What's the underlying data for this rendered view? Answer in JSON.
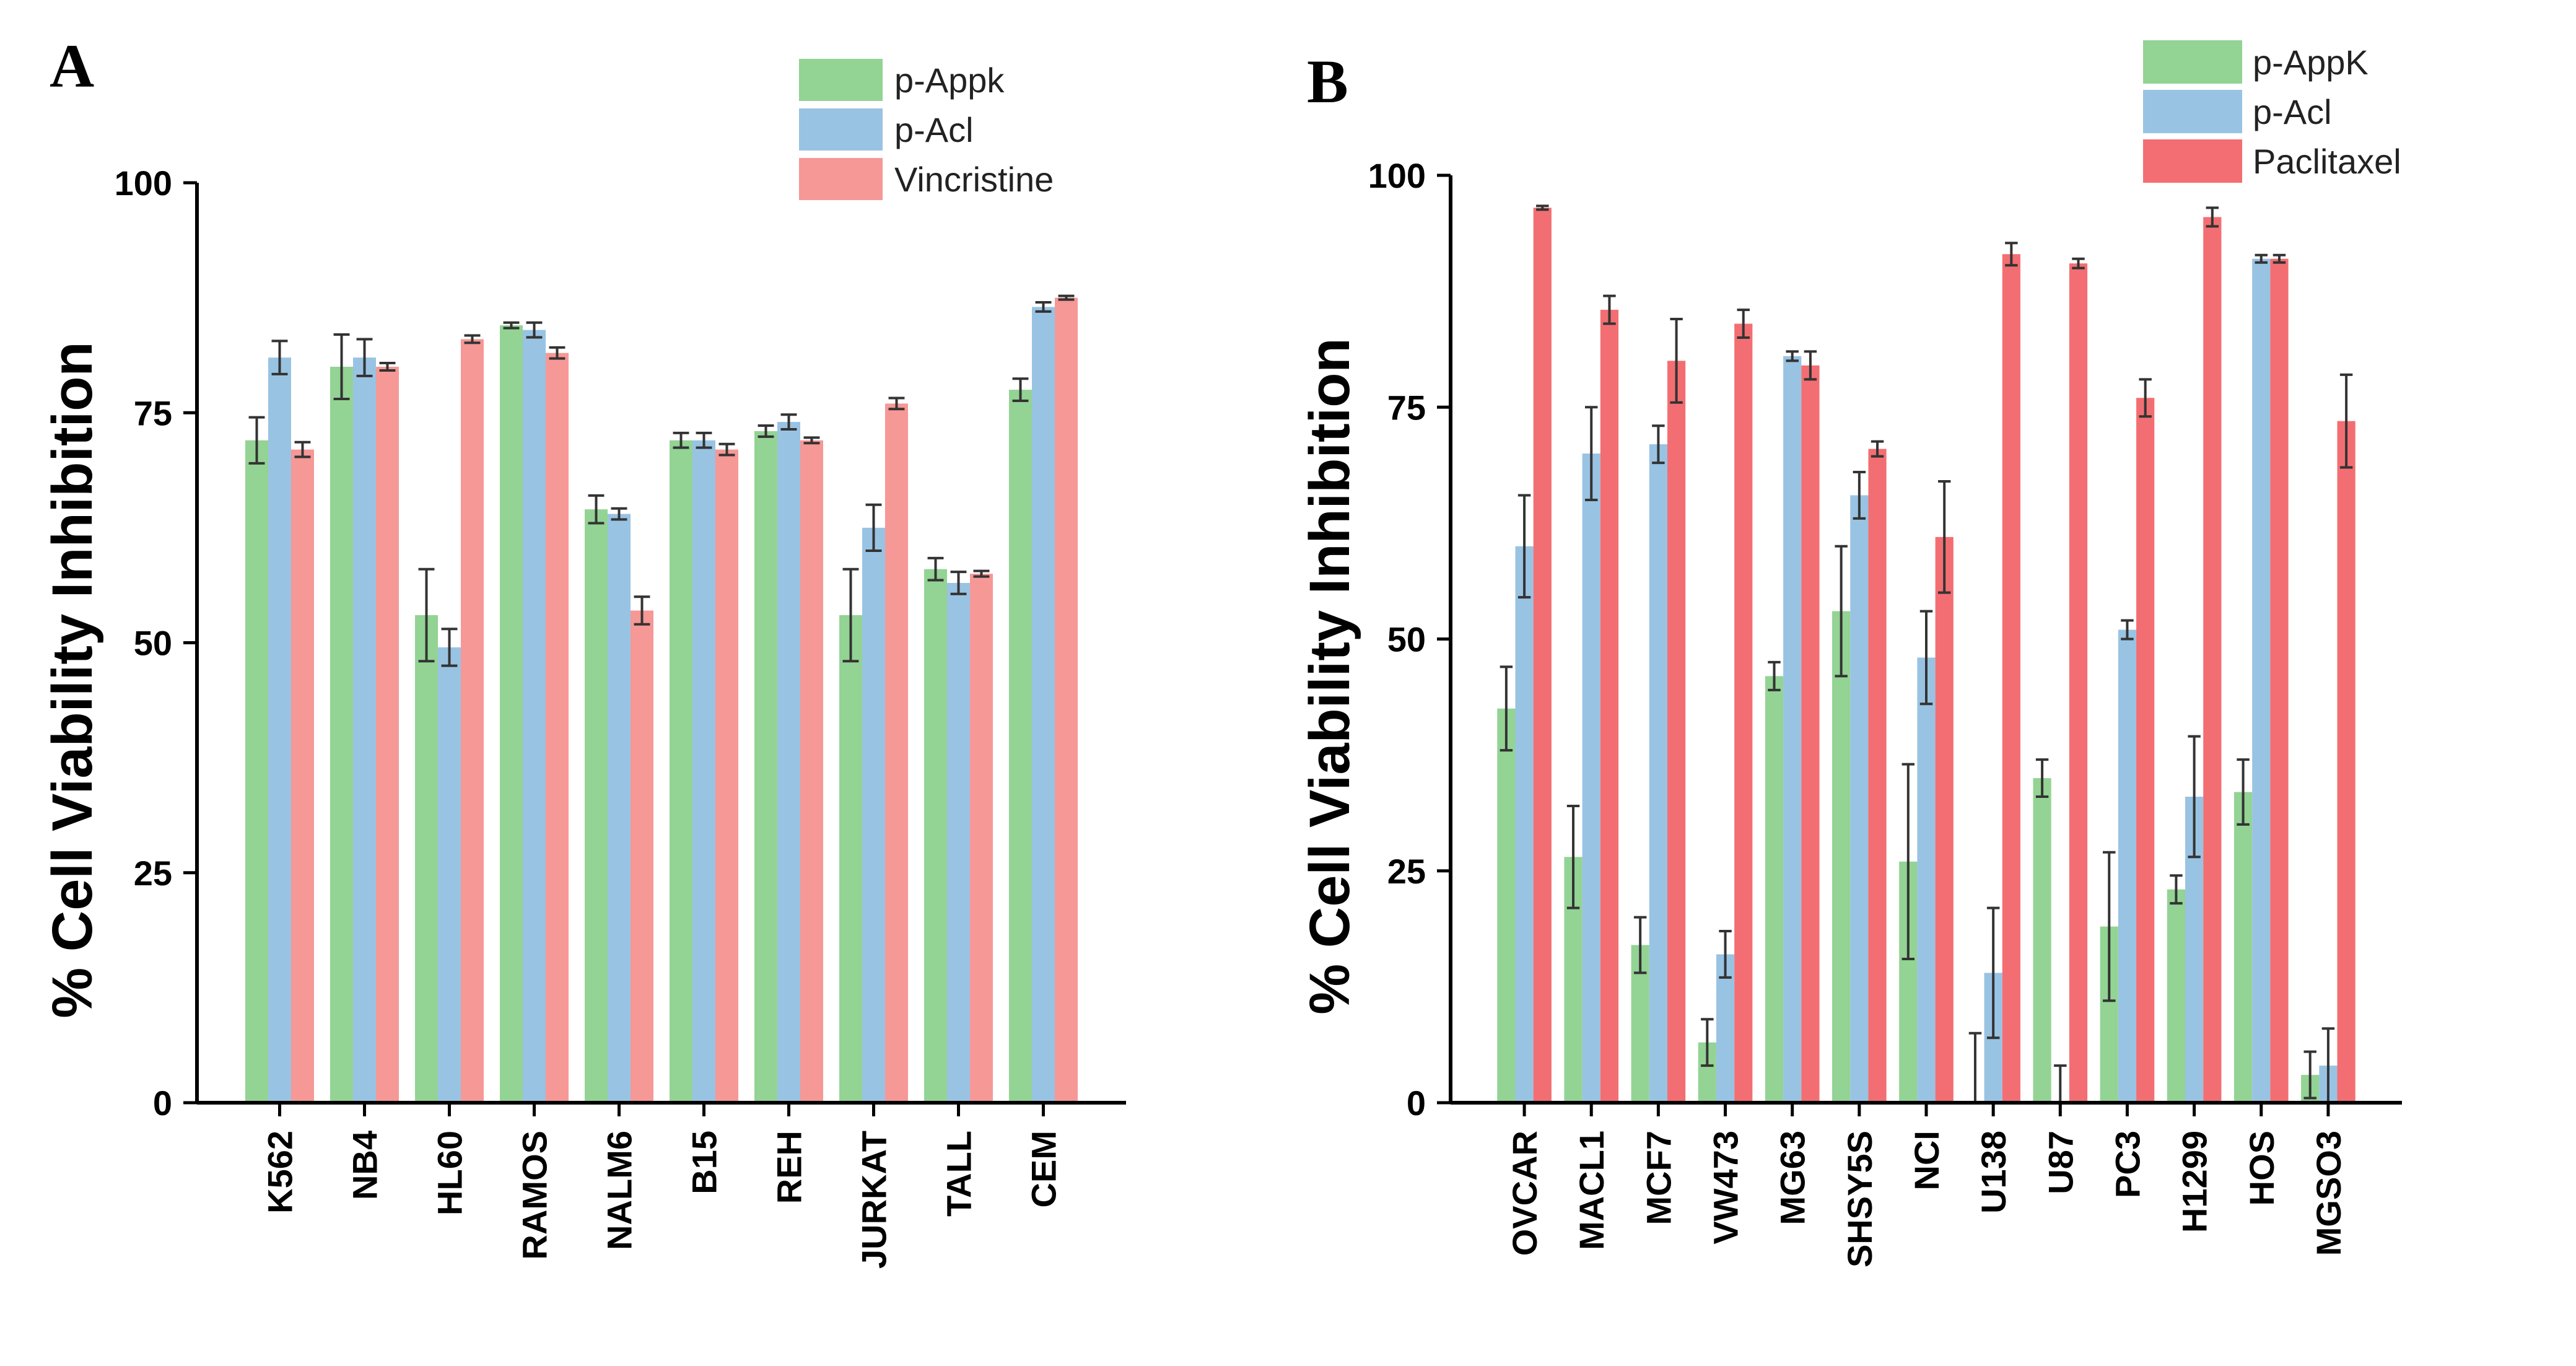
{
  "chart_data": [
    {
      "panel": "A",
      "type": "bar",
      "ylabel": "% Cell Viability Inhibition",
      "xlabel": "",
      "ylim": [
        0,
        100
      ],
      "yticks": [
        "0",
        "25",
        "50",
        "75",
        "100"
      ],
      "legend_position": "top-right",
      "categories": [
        "K562",
        "NB4",
        "HL60",
        "RAMOS",
        "NALM6",
        "B15",
        "REH",
        "JURKAT",
        "TALL",
        "CEM"
      ],
      "series": [
        {
          "name": "p-Appk",
          "color": "#93d394",
          "values": [
            72,
            80,
            53,
            84.5,
            64.5,
            72,
            73,
            53,
            58,
            77.5
          ],
          "errors": [
            2.5,
            3.5,
            5,
            0.3,
            1.5,
            0.8,
            0.6,
            5,
            1.2,
            1.2
          ]
        },
        {
          "name": "p-Acl",
          "color": "#99c3e3",
          "values": [
            81,
            81,
            49.5,
            84,
            64,
            72,
            74,
            62.5,
            56.5,
            86.5
          ],
          "errors": [
            1.8,
            2,
            2,
            0.8,
            0.6,
            0.8,
            0.8,
            2.5,
            1.2,
            0.5
          ]
        },
        {
          "name": "Vincristine",
          "color": "#f69896",
          "values": [
            71,
            80,
            83,
            81.5,
            53.5,
            71,
            72,
            76,
            57.5,
            87.5
          ],
          "errors": [
            0.8,
            0.4,
            0.4,
            0.6,
            1.5,
            0.6,
            0.3,
            0.6,
            0.3,
            0.2
          ]
        }
      ]
    },
    {
      "panel": "B",
      "type": "bar",
      "ylabel": "% Cell Viability Inhibition",
      "xlabel": "",
      "ylim": [
        0,
        100
      ],
      "yticks": [
        "0",
        "25",
        "50",
        "75",
        "100"
      ],
      "legend_position": "top-right",
      "categories": [
        "OVCAR",
        "MACL1",
        "MCF7",
        "VW473",
        "MG63",
        "SHSY5S",
        "NCI",
        "U138",
        "U87",
        "PC3",
        "H1299",
        "HOS",
        "MGSO3"
      ],
      "series": [
        {
          "name": "p-AppK",
          "color": "#93d394",
          "values": [
            42.5,
            26.5,
            17,
            6.5,
            46,
            53,
            26,
            0,
            35,
            19,
            23,
            33.5,
            3
          ],
          "errors": [
            4.5,
            5.5,
            3,
            2.5,
            1.5,
            7,
            10.5,
            7.5,
            2,
            8,
            1.5,
            3.5,
            2.5
          ]
        },
        {
          "name": "p-Acl",
          "color": "#99c3e3",
          "values": [
            60,
            70,
            71,
            16,
            80.5,
            65.5,
            48,
            14,
            0,
            51,
            33,
            91,
            4
          ],
          "errors": [
            5.5,
            5,
            2,
            2.5,
            0.5,
            2.5,
            5,
            7,
            4,
            1,
            6.5,
            0.4,
            4
          ]
        },
        {
          "name": "Paclitaxel",
          "color": "#f36e72",
          "values": [
            96.5,
            85.5,
            80,
            84,
            79.5,
            70.5,
            61,
            91.5,
            90.5,
            76,
            95.5,
            91,
            73.5
          ],
          "errors": [
            0.2,
            1.5,
            4.5,
            1.5,
            1.5,
            0.8,
            6,
            1.2,
            0.5,
            2,
            1,
            0.4,
            5
          ]
        }
      ]
    }
  ]
}
